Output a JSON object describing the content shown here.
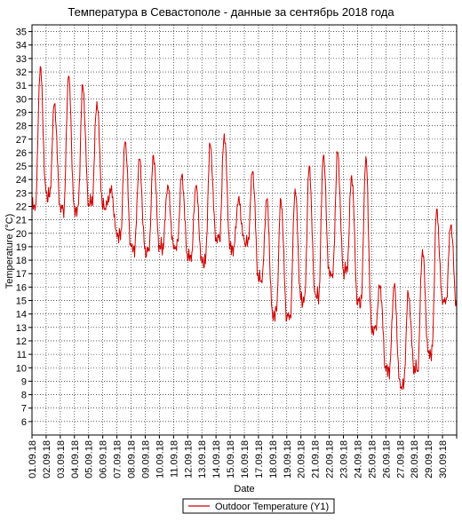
{
  "chart_data": {
    "type": "line",
    "title": "Температура в Севастополе - данные за сентябрь 2018 года",
    "xlabel": "Date",
    "ylabel": "Temperature (°C)",
    "ylim": [
      5,
      35.5
    ],
    "yticks": [
      6,
      7,
      8,
      9,
      10,
      11,
      12,
      13,
      14,
      15,
      16,
      17,
      18,
      19,
      20,
      21,
      22,
      23,
      24,
      25,
      26,
      27,
      28,
      29,
      30,
      31,
      32,
      33,
      34,
      35
    ],
    "x_categories": [
      "01.09.18",
      "02.09.18",
      "03.09.18",
      "04.09.18",
      "05.09.18",
      "06.09.18",
      "07.09.18",
      "08.09.18",
      "09.09.18",
      "10.09.18",
      "11.09.18",
      "12.09.18",
      "13.09.18",
      "14.09.18",
      "15.09.18",
      "16.09.18",
      "17.09.18",
      "18.09.18",
      "19.09.18",
      "20.09.18",
      "21.09.18",
      "22.09.18",
      "23.09.18",
      "24.09.18",
      "25.09.18",
      "26.09.18",
      "27.09.18",
      "28.09.18",
      "29.09.18",
      "30.09.18"
    ],
    "grid": true,
    "legend_position": "bottom-center",
    "series": [
      {
        "name": "Outdoor Temperature (Y1)",
        "color": "#cc0000",
        "daily_min": [
          22.0,
          22.8,
          21.8,
          21.8,
          22.3,
          22.0,
          19.8,
          18.9,
          18.7,
          19.0,
          19.0,
          18.2,
          17.9,
          19.6,
          18.9,
          19.3,
          16.6,
          14.0,
          13.8,
          15.0,
          15.3,
          17.0,
          17.3,
          14.9,
          12.8,
          9.8,
          8.7,
          9.9,
          11.1,
          14.9
        ],
        "daily_max": [
          32.4,
          29.6,
          31.7,
          31.0,
          29.8,
          23.3,
          26.8,
          25.5,
          25.8,
          23.6,
          24.3,
          23.5,
          26.6,
          27.4,
          22.6,
          24.6,
          22.5,
          22.5,
          23.3,
          25.0,
          25.8,
          26.0,
          24.3,
          25.7,
          16.1,
          16.1,
          15.5,
          18.8,
          21.8,
          20.6
        ],
        "end_value": 14.5
      }
    ]
  }
}
